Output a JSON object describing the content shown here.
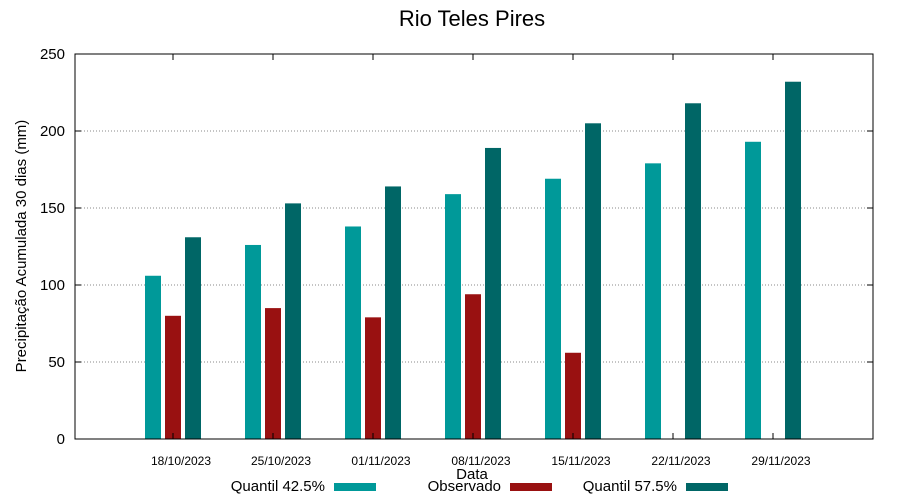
{
  "chart_data": {
    "type": "bar",
    "title": "Rio Teles Pires",
    "xlabel": "Data",
    "ylabel": "Precipitação Acumulada 30 dias (mm)",
    "ylim": [
      0,
      250
    ],
    "yticks": [
      0,
      50,
      100,
      150,
      200,
      250
    ],
    "grid": "horizontal dotted",
    "legend_position": "bottom",
    "categories": [
      "18/10/2023",
      "25/10/2023",
      "01/11/2023",
      "08/11/2023",
      "15/11/2023",
      "22/11/2023",
      "29/11/2023"
    ],
    "series": [
      {
        "name": "Quantil 42.5%",
        "color": "#009999",
        "values": [
          106,
          126,
          138,
          159,
          169,
          179,
          193
        ]
      },
      {
        "name": "Observado",
        "color": "#991111",
        "values": [
          80,
          85,
          79,
          94,
          56,
          null,
          null
        ]
      },
      {
        "name": "Quantil 57.5%",
        "color": "#006666",
        "values": [
          131,
          153,
          164,
          189,
          205,
          218,
          232
        ]
      }
    ]
  }
}
